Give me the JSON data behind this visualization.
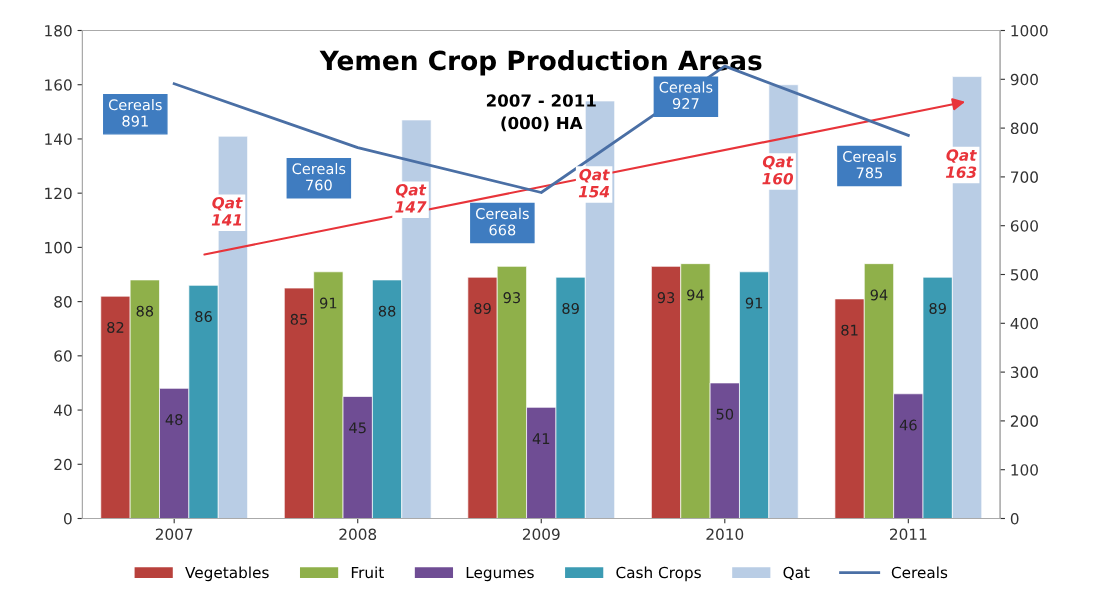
{
  "chart_data": {
    "type": "bar",
    "title": "Yemen Crop Production Areas",
    "subtitle": "2007 - 2011\n(000) HA",
    "categories": [
      "2007",
      "2008",
      "2009",
      "2010",
      "2011"
    ],
    "series": [
      {
        "name": "Vegetables",
        "color": "#b8413c",
        "values": [
          82,
          85,
          89,
          93,
          81
        ],
        "value_labels": [
          "82",
          "85",
          "89",
          "93",
          "81"
        ]
      },
      {
        "name": "Fruit",
        "color": "#8fb04a",
        "values": [
          88,
          91,
          93,
          94,
          94
        ],
        "value_labels": [
          "88",
          "91",
          "93",
          "94",
          "94"
        ]
      },
      {
        "name": "Legumes",
        "color": "#6f4d94",
        "values": [
          48,
          45,
          41,
          50,
          46
        ],
        "value_labels": [
          "48",
          "45",
          "41",
          "50",
          "46"
        ]
      },
      {
        "name": "Cash Crops",
        "color": "#3c9bb3",
        "values": [
          86,
          88,
          89,
          91,
          89
        ],
        "value_labels": [
          "86",
          "88",
          "89",
          "91",
          "89"
        ]
      },
      {
        "name": "Qat",
        "color": "#b9cde5",
        "values": [
          141,
          147,
          154,
          160,
          163
        ],
        "value_labels": [
          "Qat\n141",
          "Qat\n147",
          "Qat\n154",
          "Qat\n160",
          "Qat\n163"
        ]
      },
      {
        "name": "Cereals",
        "type": "line",
        "axis": "y2",
        "color": "#4a6fa5",
        "values": [
          891,
          760,
          668,
          927,
          785
        ],
        "value_labels": [
          "Cereals\n891",
          "Cereals\n760",
          "Cereals\n668",
          "Cereals\n927",
          "Cereals\n785"
        ]
      }
    ],
    "ylim": [
      0,
      180
    ],
    "yticks": [
      0,
      20,
      40,
      60,
      80,
      100,
      120,
      140,
      160,
      180
    ],
    "y2lim": [
      0,
      1000
    ],
    "y2ticks": [
      0,
      100,
      200,
      300,
      400,
      500,
      600,
      700,
      800,
      900,
      1000
    ],
    "legend": "bottom",
    "grid": false
  }
}
